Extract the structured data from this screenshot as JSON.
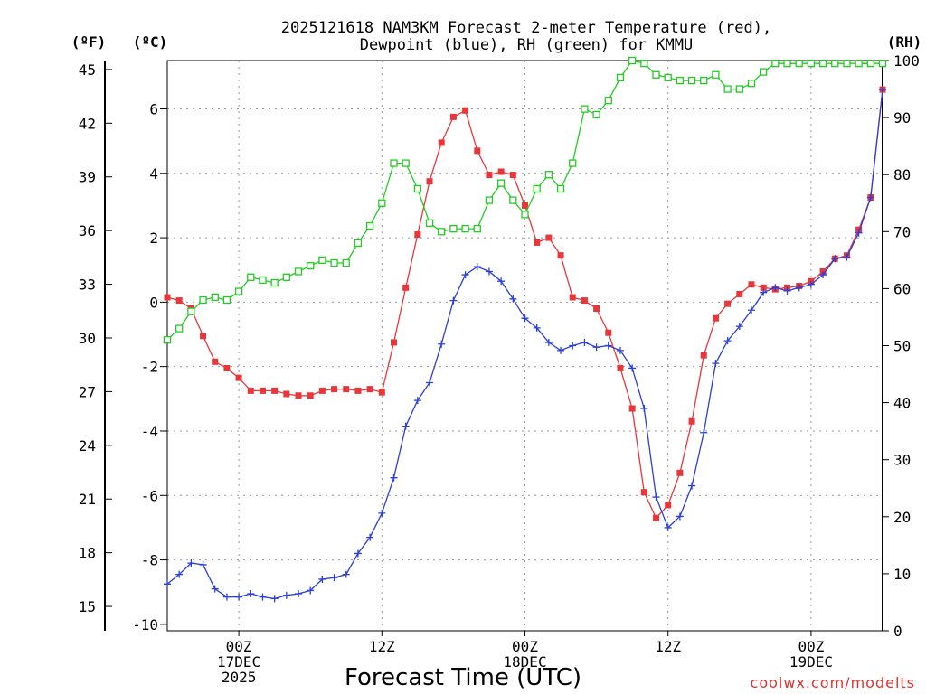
{
  "chart_data": {
    "type": "line",
    "title_line1": "2025121618 NAM3KM Forecast 2-meter Temperature (red),",
    "title_line2": "Dewpoint (blue), RH (green) for KMMU",
    "xlabel": "Forecast Time (UTC)",
    "credit": "coolwx.com/modelts",
    "units": {
      "fahrenheit": "(ºF)",
      "celsius": "(ºC)",
      "rh": "(RH)"
    },
    "x_unit": "forecast hour",
    "xlim": [
      0,
      60
    ],
    "ylim_celsius": [
      -10.2,
      7.5
    ],
    "ylim_rh": [
      0,
      100
    ],
    "y_ticks_celsius": [
      -10,
      -8,
      -6,
      -4,
      -2,
      0,
      2,
      4,
      6
    ],
    "y_ticks_fahrenheit": [
      15,
      18,
      21,
      24,
      27,
      30,
      33,
      36,
      39,
      42,
      45
    ],
    "y_ticks_rh": [
      0,
      10,
      20,
      30,
      40,
      50,
      60,
      70,
      80,
      90,
      100
    ],
    "x_ticks": [
      {
        "hour": 6,
        "lines": [
          "00Z",
          "17DEC",
          "2025"
        ]
      },
      {
        "hour": 18,
        "lines": [
          "12Z"
        ]
      },
      {
        "hour": 30,
        "lines": [
          "00Z",
          "18DEC"
        ]
      },
      {
        "hour": 42,
        "lines": [
          "12Z"
        ]
      },
      {
        "hour": 54,
        "lines": [
          "00Z",
          "19DEC"
        ]
      }
    ],
    "series": [
      {
        "name": "Temperature",
        "color": "#e8373a",
        "axis": "celsius",
        "marker": "filled-square",
        "x": [
          0,
          1,
          2,
          3,
          4,
          5,
          6,
          7,
          8,
          9,
          10,
          11,
          12,
          13,
          14,
          15,
          16,
          17,
          18,
          19,
          20,
          21,
          22,
          23,
          24,
          25,
          26,
          27,
          28,
          29,
          30,
          31,
          32,
          33,
          34,
          35,
          36,
          37,
          38,
          39,
          40,
          41,
          42,
          43,
          44,
          45,
          46,
          47,
          48,
          49,
          50,
          51,
          52,
          53,
          54,
          55,
          56,
          57,
          58,
          59,
          60
        ],
        "values": [
          0.15,
          0.05,
          -0.2,
          -1.05,
          -1.85,
          -2.05,
          -2.35,
          -2.75,
          -2.75,
          -2.75,
          -2.85,
          -2.9,
          -2.9,
          -2.75,
          -2.7,
          -2.7,
          -2.75,
          -2.7,
          -2.8,
          -1.25,
          0.45,
          2.1,
          3.75,
          4.95,
          5.75,
          5.95,
          4.7,
          3.95,
          4.05,
          3.95,
          3.0,
          1.85,
          2.0,
          1.45,
          0.15,
          0.05,
          -0.2,
          -0.95,
          -2.05,
          -3.3,
          -5.9,
          -6.7,
          -6.3,
          -5.3,
          -3.7,
          -1.65,
          -0.5,
          -0.05,
          0.25,
          0.55,
          0.45,
          0.4,
          0.45,
          0.5,
          0.65,
          0.95,
          1.35,
          1.45,
          2.25,
          3.25,
          6.6
        ]
      },
      {
        "name": "Dewpoint",
        "color": "#2a3fd9",
        "axis": "celsius",
        "marker": "plus",
        "x": [
          0,
          1,
          2,
          3,
          4,
          5,
          6,
          7,
          8,
          9,
          10,
          11,
          12,
          13,
          14,
          15,
          16,
          17,
          18,
          19,
          20,
          21,
          22,
          23,
          24,
          25,
          26,
          27,
          28,
          29,
          30,
          31,
          32,
          33,
          34,
          35,
          36,
          37,
          38,
          39,
          40,
          41,
          42,
          43,
          44,
          45,
          46,
          47,
          48,
          49,
          50,
          51,
          52,
          53,
          54,
          55,
          56,
          57,
          58,
          59,
          60
        ],
        "values": [
          -8.75,
          -8.45,
          -8.1,
          -8.15,
          -8.9,
          -9.15,
          -9.15,
          -9.05,
          -9.15,
          -9.2,
          -9.1,
          -9.05,
          -8.95,
          -8.6,
          -8.55,
          -8.45,
          -7.8,
          -7.3,
          -6.55,
          -5.45,
          -3.85,
          -3.05,
          -2.5,
          -1.3,
          0.05,
          0.85,
          1.1,
          0.95,
          0.65,
          0.1,
          -0.5,
          -0.8,
          -1.25,
          -1.5,
          -1.35,
          -1.25,
          -1.4,
          -1.35,
          -1.5,
          -2.05,
          -3.3,
          -6.05,
          -7.0,
          -6.65,
          -5.7,
          -4.05,
          -1.9,
          -1.2,
          -0.75,
          -0.25,
          0.3,
          0.45,
          0.35,
          0.45,
          0.55,
          0.85,
          1.35,
          1.4,
          2.15,
          3.25,
          6.6
        ]
      },
      {
        "name": "RH",
        "color": "#22cc22",
        "axis": "rh",
        "marker": "open-square",
        "x": [
          0,
          1,
          2,
          3,
          4,
          5,
          6,
          7,
          8,
          9,
          10,
          11,
          12,
          13,
          14,
          15,
          16,
          17,
          18,
          19,
          20,
          21,
          22,
          23,
          24,
          25,
          26,
          27,
          28,
          29,
          30,
          31,
          32,
          33,
          34,
          35,
          36,
          37,
          38,
          39,
          40,
          41,
          42,
          43,
          44,
          45,
          46,
          47,
          48,
          49,
          50,
          51,
          52,
          53,
          54,
          55,
          56,
          57,
          58,
          59,
          60
        ],
        "values": [
          51,
          53,
          56,
          58,
          58.5,
          58,
          59.5,
          62,
          61.5,
          61,
          62,
          63,
          64,
          65,
          64.5,
          64.5,
          68,
          71,
          75,
          82,
          82,
          77.5,
          71.5,
          70,
          70.5,
          70.5,
          70.5,
          75.5,
          78.5,
          75.5,
          73,
          77.5,
          80,
          77.5,
          82,
          91.5,
          90.5,
          93,
          97,
          100,
          99.5,
          97.5,
          97,
          96.5,
          96.5,
          96.5,
          97.5,
          95,
          95,
          96,
          98,
          99.5,
          99.5,
          99.5,
          99.5,
          99.5,
          99.5,
          99.5,
          99.5,
          99.5,
          99.5
        ]
      }
    ]
  }
}
